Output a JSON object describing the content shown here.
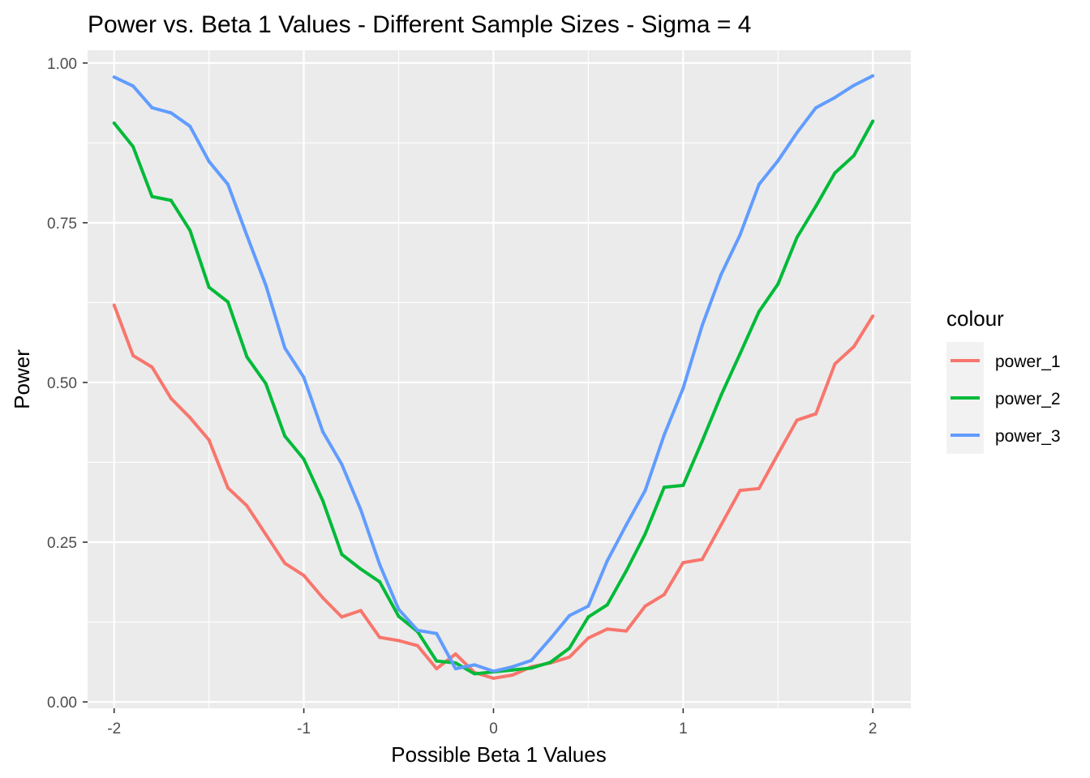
{
  "chart_data": {
    "type": "line",
    "title": "Power vs. Beta 1 Values - Different Sample Sizes - Sigma = 4",
    "xlabel": "Possible Beta 1 Values",
    "ylabel": "Power",
    "xlim": [
      -2.14,
      2.2
    ],
    "ylim": [
      -0.01,
      1.02
    ],
    "x_ticks": [
      -2,
      -1,
      0,
      1,
      2
    ],
    "x_tick_labels": [
      "-2",
      "-1",
      "0",
      "1",
      "2"
    ],
    "y_ticks": [
      0,
      0.25,
      0.5,
      0.75,
      1
    ],
    "y_tick_labels": [
      "0.00",
      "0.25",
      "0.50",
      "0.75",
      "1.00"
    ],
    "grid": true,
    "legend": {
      "title": "colour",
      "position": "right"
    },
    "x": [
      -2.0,
      -1.9,
      -1.8,
      -1.7,
      -1.6,
      -1.5,
      -1.4,
      -1.3,
      -1.2,
      -1.1,
      -1.0,
      -0.9,
      -0.8,
      -0.7,
      -0.6,
      -0.5,
      -0.4,
      -0.3,
      -0.2,
      -0.1,
      0.0,
      0.1,
      0.2,
      0.3,
      0.4,
      0.5,
      0.6,
      0.7,
      0.8,
      0.9,
      1.0,
      1.1,
      1.2,
      1.3,
      1.4,
      1.5,
      1.6,
      1.7,
      1.8,
      1.9,
      2.0
    ],
    "series": [
      {
        "name": "power_1",
        "color": "#F8766D",
        "values": [
          0.621,
          0.542,
          0.524,
          0.475,
          0.445,
          0.41,
          0.335,
          0.307,
          0.262,
          0.217,
          0.198,
          0.163,
          0.133,
          0.143,
          0.101,
          0.096,
          0.088,
          0.052,
          0.075,
          0.046,
          0.037,
          0.042,
          0.055,
          0.061,
          0.07,
          0.1,
          0.114,
          0.111,
          0.15,
          0.168,
          0.218,
          0.223,
          0.277,
          0.331,
          0.334,
          0.388,
          0.441,
          0.451,
          0.529,
          0.556,
          0.604
        ]
      },
      {
        "name": "power_2",
        "color": "#00BA38",
        "values": [
          0.906,
          0.869,
          0.791,
          0.785,
          0.738,
          0.649,
          0.626,
          0.54,
          0.498,
          0.416,
          0.38,
          0.315,
          0.231,
          0.208,
          0.188,
          0.134,
          0.11,
          0.064,
          0.061,
          0.044,
          0.047,
          0.05,
          0.053,
          0.062,
          0.084,
          0.133,
          0.152,
          0.205,
          0.263,
          0.336,
          0.339,
          0.408,
          0.48,
          0.545,
          0.611,
          0.654,
          0.727,
          0.776,
          0.828,
          0.855,
          0.909
        ]
      },
      {
        "name": "power_3",
        "color": "#619CFF",
        "values": [
          0.978,
          0.964,
          0.93,
          0.922,
          0.901,
          0.846,
          0.81,
          0.73,
          0.652,
          0.554,
          0.508,
          0.423,
          0.372,
          0.301,
          0.215,
          0.145,
          0.112,
          0.107,
          0.052,
          0.058,
          0.048,
          0.055,
          0.065,
          0.099,
          0.135,
          0.15,
          0.221,
          0.277,
          0.331,
          0.418,
          0.491,
          0.589,
          0.669,
          0.731,
          0.81,
          0.847,
          0.891,
          0.93,
          0.946,
          0.965,
          0.98
        ]
      }
    ]
  }
}
